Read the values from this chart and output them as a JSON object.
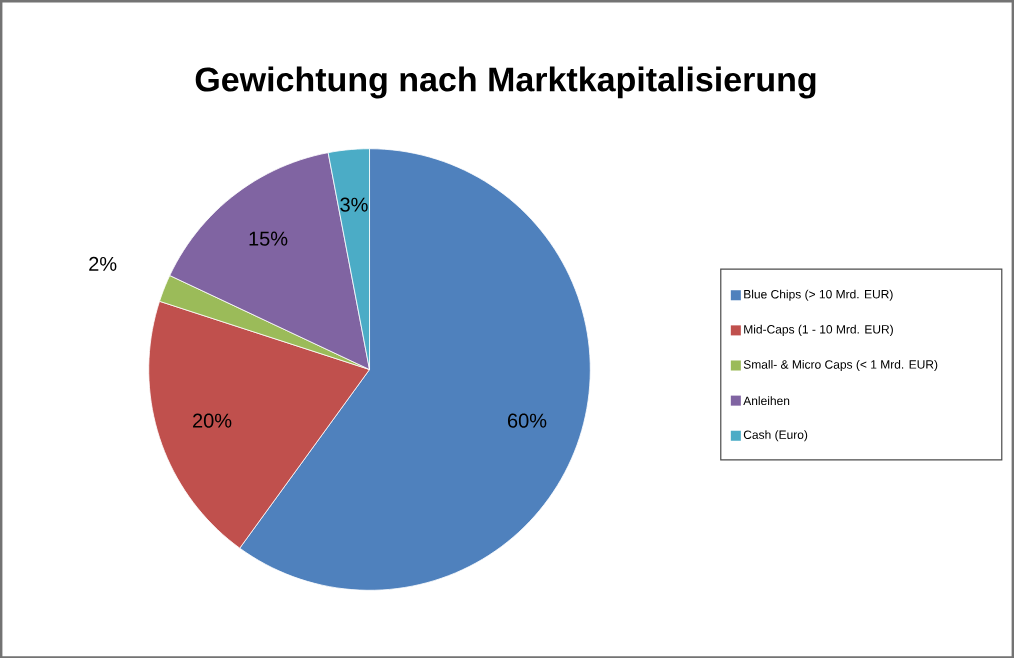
{
  "chart_data": {
    "type": "pie",
    "title": "Gewichtung nach Marktkapitalisierung",
    "categories": [
      "Blue Chips (> 10 Mrd. EUR)",
      "Mid-Caps (1 - 10 Mrd. EUR)",
      "Small- & Micro Caps (< 1 Mrd. EUR)",
      "Anleihen",
      "Cash (Euro)"
    ],
    "values": [
      60,
      20,
      2,
      15,
      3
    ],
    "value_labels": [
      "60%",
      "20%",
      "2%",
      "15%",
      "3%"
    ],
    "colors": [
      "#4f81bd",
      "#c0504d",
      "#9bbb59",
      "#8064a2",
      "#4bacc6"
    ],
    "legend": "right"
  }
}
